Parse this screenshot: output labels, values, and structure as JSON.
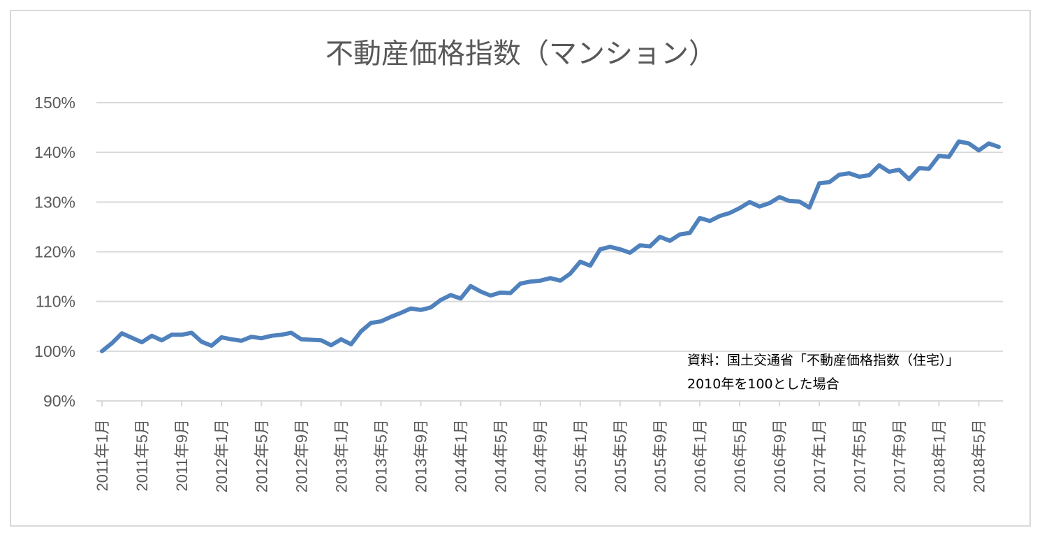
{
  "chart_data": {
    "type": "line",
    "title": "不動産価格指数（マンション）",
    "xlabel": "",
    "ylabel": "",
    "ylim": [
      90,
      150
    ],
    "yticks": [
      "90%",
      "100%",
      "110%",
      "120%",
      "130%",
      "140%",
      "150%"
    ],
    "ytick_values": [
      90,
      100,
      110,
      120,
      130,
      140,
      150
    ],
    "grid": true,
    "xtick_labels": [
      "2011年1月",
      "2011年5月",
      "2011年9月",
      "2012年1月",
      "2012年5月",
      "2012年9月",
      "2013年1月",
      "2013年5月",
      "2013年9月",
      "2014年1月",
      "2014年5月",
      "2014年9月",
      "2015年1月",
      "2015年5月",
      "2015年9月",
      "2016年1月",
      "2016年5月",
      "2016年9月",
      "2017年1月",
      "2017年5月",
      "2017年9月",
      "2018年1月",
      "2018年5月"
    ],
    "x": [
      "2011年1月",
      "2011年2月",
      "2011年3月",
      "2011年4月",
      "2011年5月",
      "2011年6月",
      "2011年7月",
      "2011年8月",
      "2011年9月",
      "2011年10月",
      "2011年11月",
      "2011年12月",
      "2012年1月",
      "2012年2月",
      "2012年3月",
      "2012年4月",
      "2012年5月",
      "2012年6月",
      "2012年7月",
      "2012年8月",
      "2012年9月",
      "2012年10月",
      "2012年11月",
      "2012年12月",
      "2013年1月",
      "2013年2月",
      "2013年3月",
      "2013年4月",
      "2013年5月",
      "2013年6月",
      "2013年7月",
      "2013年8月",
      "2013年9月",
      "2013年10月",
      "2013年11月",
      "2013年12月",
      "2014年1月",
      "2014年2月",
      "2014年3月",
      "2014年4月",
      "2014年5月",
      "2014年6月",
      "2014年7月",
      "2014年8月",
      "2014年9月",
      "2014年10月",
      "2014年11月",
      "2014年12月",
      "2015年1月",
      "2015年2月",
      "2015年3月",
      "2015年4月",
      "2015年5月",
      "2015年6月",
      "2015年7月",
      "2015年8月",
      "2015年9月",
      "2015年10月",
      "2015年11月",
      "2015年12月",
      "2016年1月",
      "2016年2月",
      "2016年3月",
      "2016年4月",
      "2016年5月",
      "2016年6月",
      "2016年7月",
      "2016年8月",
      "2016年9月",
      "2016年10月",
      "2016年11月",
      "2016年12月",
      "2017年1月",
      "2017年2月",
      "2017年3月",
      "2017年4月",
      "2017年5月",
      "2017年6月",
      "2017年7月",
      "2017年8月",
      "2017年9月",
      "2017年10月",
      "2017年11月",
      "2017年12月",
      "2018年1月",
      "2018年2月",
      "2018年3月",
      "2018年4月",
      "2018年5月",
      "2018年6月",
      "2018年7月"
    ],
    "series": [
      {
        "values": [
          100.0,
          101.6,
          103.6,
          102.7,
          101.8,
          103.1,
          102.2,
          103.3,
          103.3,
          103.7,
          101.9,
          101.1,
          102.8,
          102.4,
          102.1,
          102.9,
          102.6,
          103.1,
          103.3,
          103.7,
          102.4,
          102.3,
          102.2,
          101.2,
          102.4,
          101.4,
          104.0,
          105.7,
          106.0,
          106.9,
          107.7,
          108.6,
          108.3,
          108.8,
          110.3,
          111.3,
          110.6,
          113.1,
          112.0,
          111.2,
          111.8,
          111.7,
          113.6,
          114.0,
          114.2,
          114.7,
          114.2,
          115.6,
          118.0,
          117.2,
          120.5,
          121.0,
          120.5,
          119.8,
          121.3,
          121.1,
          123.0,
          122.2,
          123.5,
          123.8,
          126.8,
          126.2,
          127.2,
          127.8,
          128.8,
          130.0,
          129.1,
          129.8,
          131.0,
          130.2,
          130.1,
          128.9,
          133.8,
          134.0,
          135.5,
          135.8,
          135.1,
          135.4,
          137.4,
          136.1,
          136.5,
          134.6,
          136.8,
          136.7,
          139.3,
          139.1,
          142.2,
          141.8,
          140.4,
          141.8,
          141.1
        ],
        "color": "#4f81bd"
      }
    ]
  },
  "source_note": {
    "line1": "資料：国土交通省「不動産価格指数（住宅）」",
    "line2": "2010年を100とした場合"
  }
}
